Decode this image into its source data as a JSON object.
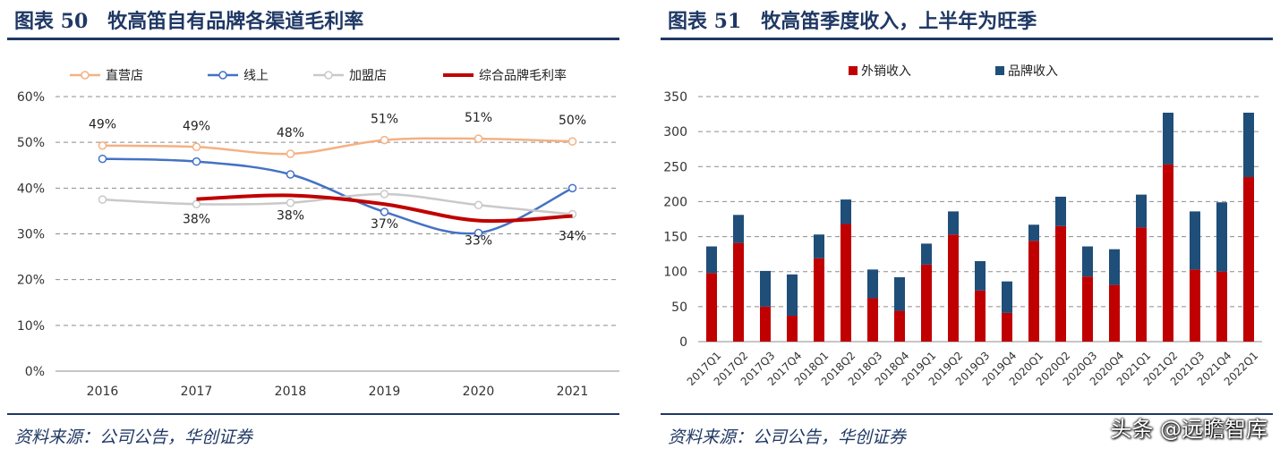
{
  "left_panel": {
    "title": "图表 50　牧高笛自有品牌各渠道毛利率",
    "source": "资料来源：公司公告，华创证券"
  },
  "right_panel": {
    "title": "图表 51　牧高笛季度收入，上半年为旺季",
    "source": "资料来源：公司公告，华创证券"
  },
  "watermark": "头条 @远瞻智库",
  "colors": {
    "title_blue": "#1f3864",
    "direct": "#f4b183",
    "online": "#4472c4",
    "franchise": "#c9c9c9",
    "overall": "#c00000",
    "export": "#c00000",
    "brand": "#1f4e79"
  },
  "chart_data": [
    {
      "type": "line",
      "x": [
        "2016",
        "2017",
        "2018",
        "2019",
        "2020",
        "2021"
      ],
      "ylim": [
        0,
        60
      ],
      "y_ticks": [
        "0%",
        "10%",
        "20%",
        "30%",
        "40%",
        "50%",
        "60%"
      ],
      "grid": true,
      "legend_position": "top",
      "series": [
        {
          "name": "直营店",
          "values": [
            49.3,
            49.0,
            47.5,
            50.5,
            50.8,
            50.2
          ],
          "labels": [
            "49%",
            "49%",
            "48%",
            "51%",
            "51%",
            "50%"
          ]
        },
        {
          "name": "线上",
          "values": [
            46.4,
            45.8,
            43.0,
            34.8,
            30.2,
            40.0
          ],
          "labels": [
            "",
            "",
            "",
            "",
            "",
            ""
          ]
        },
        {
          "name": "加盟店",
          "values": [
            37.5,
            36.5,
            36.8,
            38.7,
            36.3,
            34.3
          ],
          "labels": [
            "",
            "",
            "",
            "",
            "",
            ""
          ]
        },
        {
          "name": "综合品牌毛利率",
          "values": [
            null,
            37.6,
            38.4,
            36.5,
            32.9,
            33.9
          ],
          "labels": [
            "",
            "38%",
            "38%",
            "37%",
            "33%",
            "34%"
          ]
        }
      ]
    },
    {
      "type": "bar",
      "stacked": true,
      "categories": [
        "2017Q1",
        "2017Q2",
        "2017Q3",
        "2017Q4",
        "2018Q1",
        "2018Q2",
        "2018Q3",
        "2018Q4",
        "2019Q1",
        "2019Q2",
        "2019Q3",
        "2019Q4",
        "2020Q1",
        "2020Q2",
        "2020Q3",
        "2020Q4",
        "2021Q1",
        "2021Q2",
        "2021Q3",
        "2021Q4",
        "2022Q1"
      ],
      "ylim": [
        0,
        350
      ],
      "y_ticks": [
        "0",
        "50",
        "100",
        "150",
        "200",
        "250",
        "300",
        "350"
      ],
      "grid": true,
      "legend_position": "top",
      "series": [
        {
          "name": "外销收入",
          "values": [
            98,
            141,
            50,
            37,
            119,
            168,
            62,
            44,
            110,
            153,
            73,
            41,
            144,
            165,
            93,
            81,
            163,
            253,
            103,
            100,
            235
          ]
        },
        {
          "name": "品牌收入",
          "values": [
            38,
            40,
            51,
            59,
            34,
            35,
            41,
            48,
            30,
            33,
            42,
            45,
            23,
            42,
            43,
            51,
            47,
            74,
            83,
            99,
            92
          ]
        }
      ]
    }
  ]
}
